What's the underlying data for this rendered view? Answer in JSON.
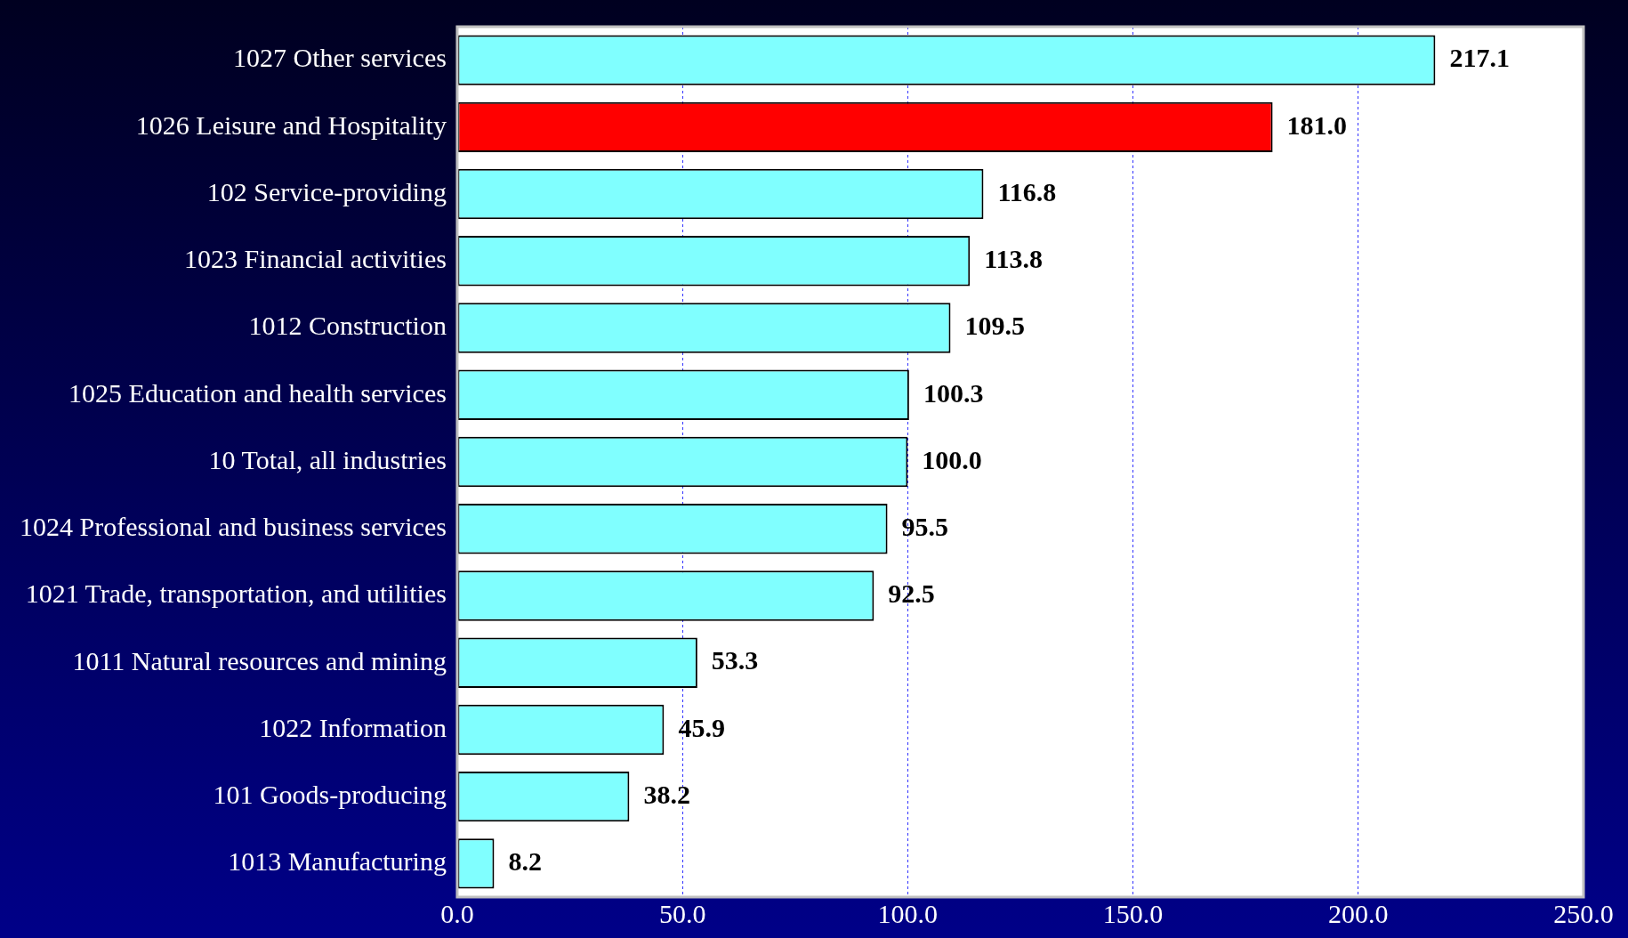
{
  "chart_data": {
    "type": "bar",
    "orientation": "horizontal",
    "categories": [
      "1027 Other services",
      "1026 Leisure and Hospitality",
      "102 Service-providing",
      "1023 Financial activities",
      "1012 Construction",
      "1025 Education and health services",
      "10 Total, all industries",
      "1024 Professional and business services",
      "1021 Trade, transportation, and utilities",
      "1011 Natural resources and mining",
      "1022 Information",
      "101 Goods-producing",
      "1013 Manufacturing"
    ],
    "values": [
      217.1,
      181.0,
      116.8,
      113.8,
      109.5,
      100.3,
      100.0,
      95.5,
      92.5,
      53.3,
      45.9,
      38.2,
      8.2
    ],
    "value_labels": [
      "217.1",
      "181.0",
      "116.8",
      "113.8",
      "109.5",
      "100.3",
      "100.0",
      "95.5",
      "92.5",
      "53.3",
      "45.9",
      "38.2",
      "8.2"
    ],
    "colors": [
      "#80ffff",
      "#ff0000",
      "#80ffff",
      "#80ffff",
      "#80ffff",
      "#80ffff",
      "#80ffff",
      "#80ffff",
      "#80ffff",
      "#80ffff",
      "#80ffff",
      "#80ffff",
      "#80ffff"
    ],
    "xlim": [
      0,
      250
    ],
    "xticks": [
      {
        "value": 0,
        "label": "0.0"
      },
      {
        "value": 50,
        "label": "50.0"
      },
      {
        "value": 100,
        "label": "100.0"
      },
      {
        "value": 150,
        "label": "150.0"
      },
      {
        "value": 200,
        "label": "200.0"
      },
      {
        "value": 250,
        "label": "250.0"
      }
    ],
    "grid": "x",
    "legend": false
  }
}
